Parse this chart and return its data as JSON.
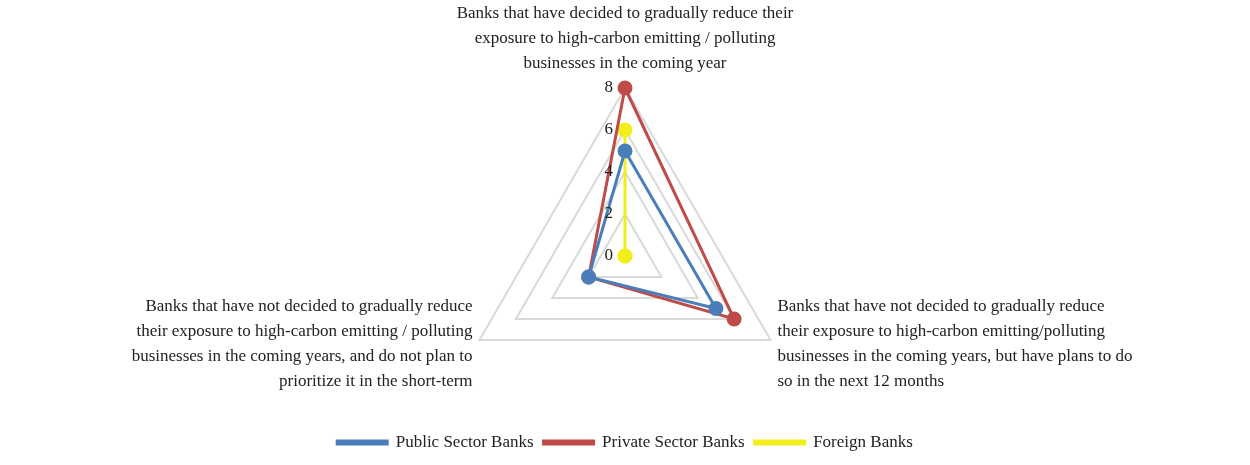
{
  "chart_data": {
    "type": "radar",
    "categories": [
      "Banks that have decided to gradually reduce their exposure to high-carbon emitting / polluting businesses in the coming year",
      "Banks that have not decided to gradually reduce their exposure to high-carbon emitting/polluting businesses in the coming years, but have plans to do so in the next 12 months",
      "Banks that have not decided to gradually reduce their exposure to high-carbon emitting / polluting businesses in the coming years, and do not plan to prioritize it in the short-term"
    ],
    "series": [
      {
        "name": "Public Sector Banks",
        "color": "#4a7ebb",
        "values": [
          5,
          5,
          2
        ]
      },
      {
        "name": "Private Sector Banks",
        "color": "#be4b48",
        "values": [
          8,
          6,
          2
        ]
      },
      {
        "name": "Foreign Banks",
        "color": "#f2ee1d",
        "values": [
          6,
          0,
          0
        ]
      }
    ],
    "ylim": [
      0,
      8
    ],
    "yticks": [
      0,
      2,
      4,
      6,
      8
    ],
    "grid": true,
    "legend": "bottom",
    "marker": "circle"
  }
}
